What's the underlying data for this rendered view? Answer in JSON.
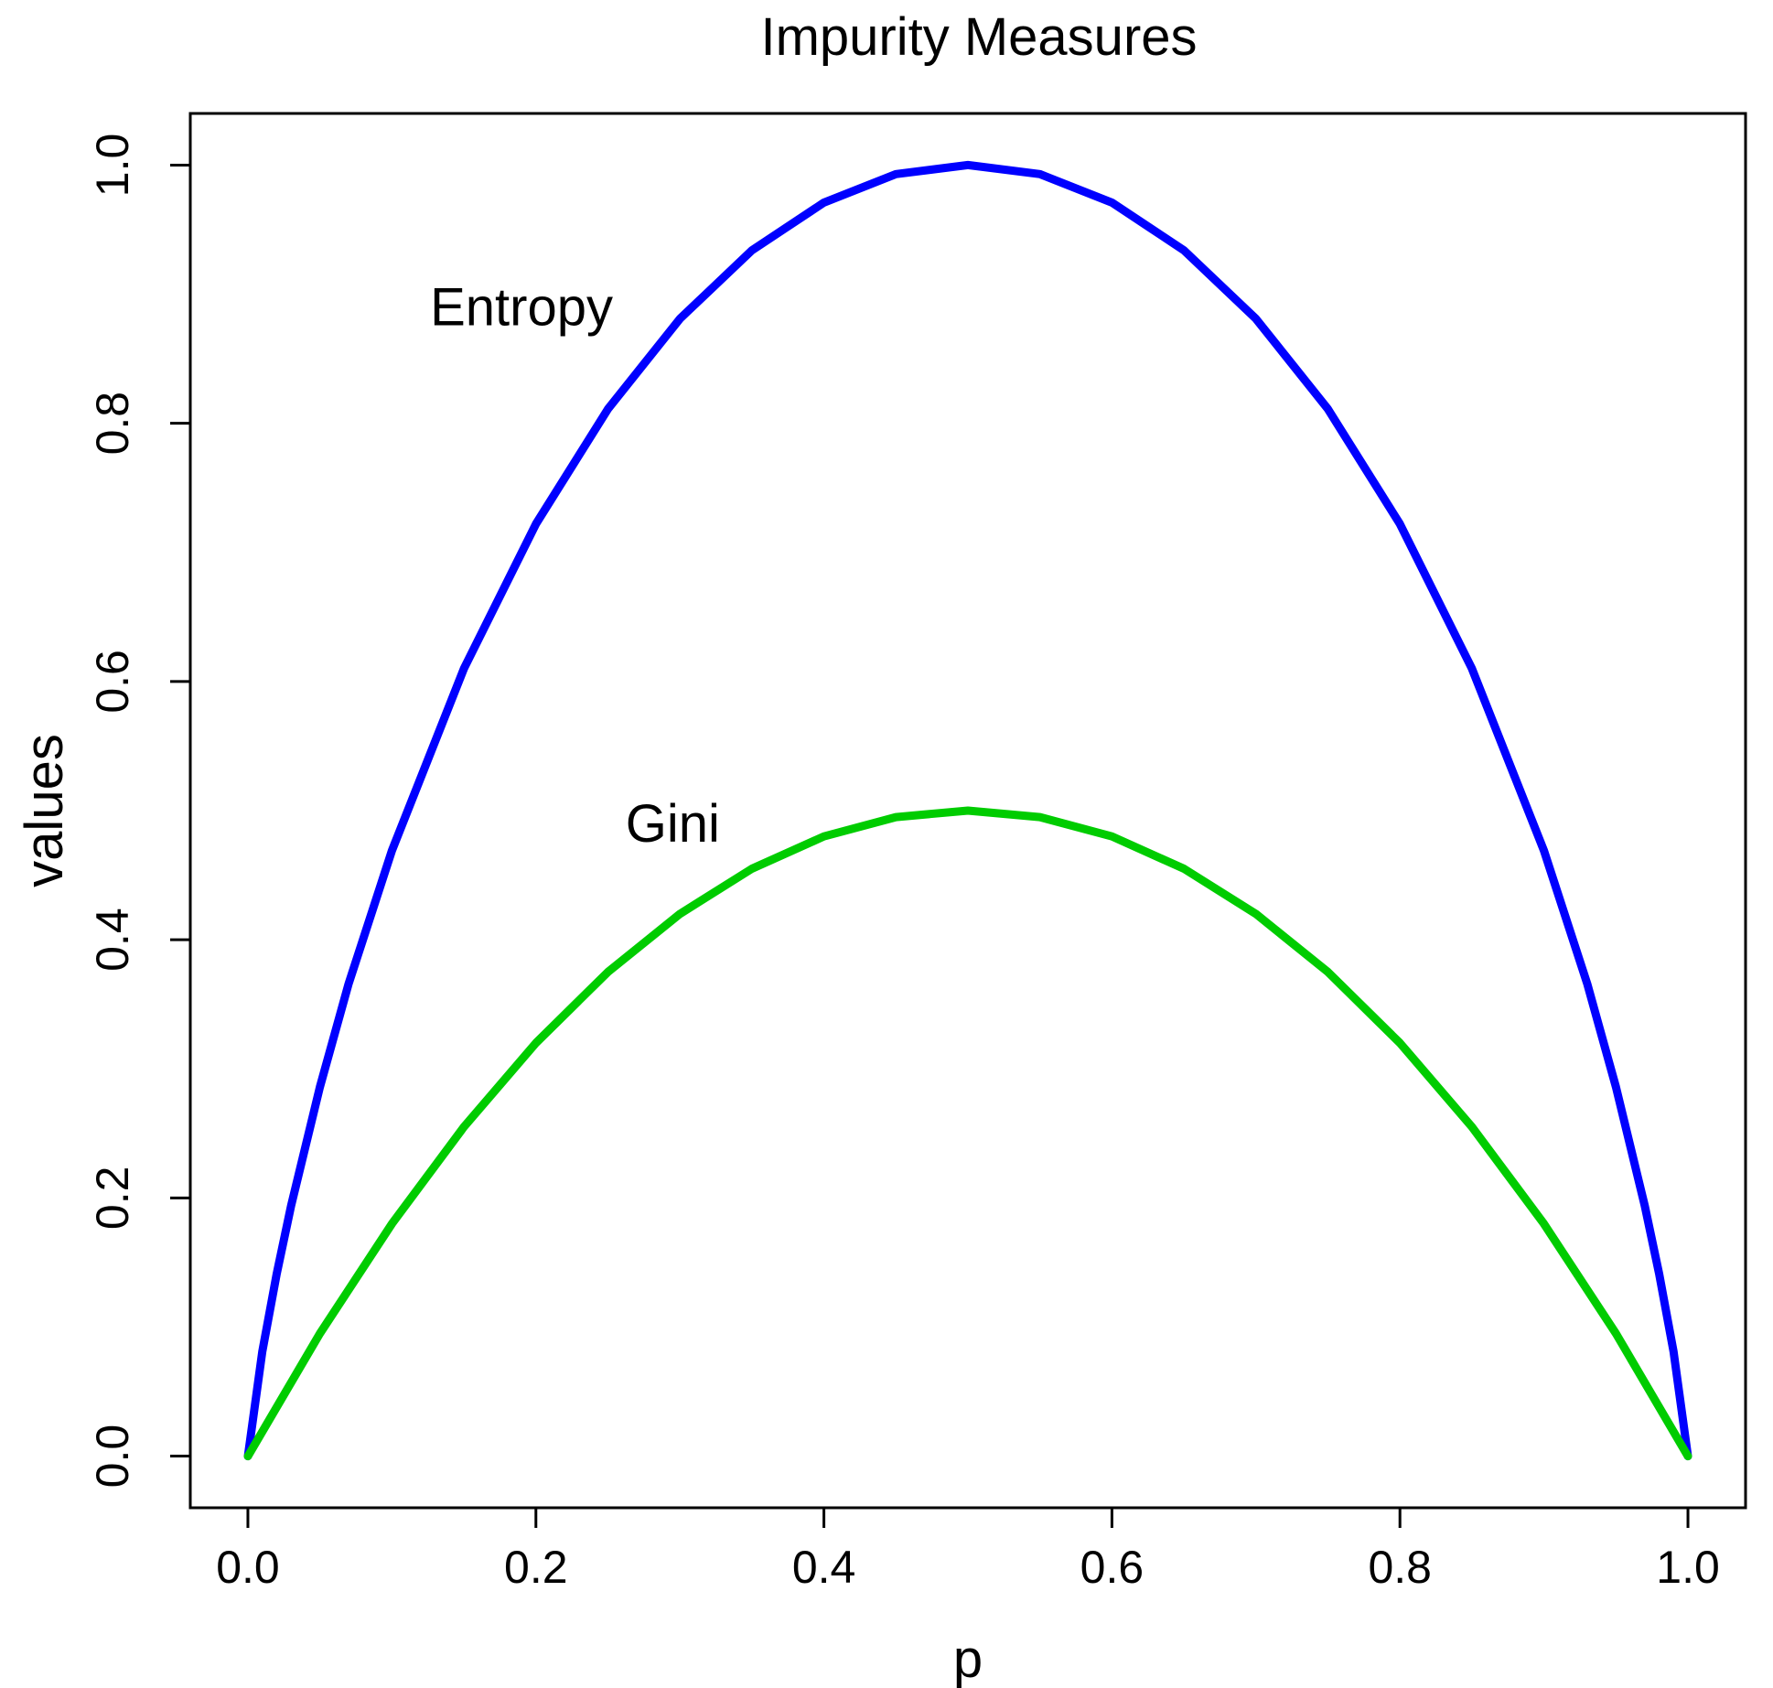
{
  "chart_data": {
    "type": "line",
    "title": "Impurity Measures",
    "xlabel": "p",
    "ylabel": "values",
    "xlim": [
      -0.04,
      1.04
    ],
    "ylim": [
      -0.04,
      1.04
    ],
    "x_ticks": [
      "0.0",
      "0.2",
      "0.4",
      "0.6",
      "0.8",
      "1.0"
    ],
    "y_ticks": [
      "0.0",
      "0.2",
      "0.4",
      "0.6",
      "0.8",
      "1.0"
    ],
    "grid": false,
    "legend": "none",
    "series": [
      {
        "color": "#0000ff",
        "x": [
          0.0,
          0.01,
          0.02,
          0.03,
          0.05,
          0.07,
          0.1,
          0.15,
          0.2,
          0.25,
          0.3,
          0.35,
          0.4,
          0.45,
          0.5,
          0.55,
          0.6,
          0.65,
          0.7,
          0.75,
          0.8,
          0.85,
          0.9,
          0.93,
          0.95,
          0.97,
          0.98,
          0.99,
          1.0
        ],
        "values": [
          0.0,
          0.081,
          0.141,
          0.194,
          0.286,
          0.366,
          0.469,
          0.61,
          0.722,
          0.811,
          0.881,
          0.934,
          0.971,
          0.993,
          1.0,
          0.993,
          0.971,
          0.934,
          0.881,
          0.811,
          0.722,
          0.61,
          0.469,
          0.366,
          0.286,
          0.194,
          0.141,
          0.081,
          0.0
        ]
      },
      {
        "color": "#00cc00",
        "x": [
          0.0,
          0.05,
          0.1,
          0.15,
          0.2,
          0.25,
          0.3,
          0.35,
          0.4,
          0.45,
          0.5,
          0.55,
          0.6,
          0.65,
          0.7,
          0.75,
          0.8,
          0.85,
          0.9,
          0.95,
          1.0
        ],
        "values": [
          0.0,
          0.095,
          0.18,
          0.255,
          0.32,
          0.375,
          0.42,
          0.455,
          0.48,
          0.495,
          0.5,
          0.495,
          0.48,
          0.455,
          0.42,
          0.375,
          0.32,
          0.255,
          0.18,
          0.095,
          0.0
        ]
      }
    ],
    "annotations": [
      {
        "text": "Entropy",
        "x": 0.19,
        "y": 0.89
      },
      {
        "text": "Gini",
        "x": 0.295,
        "y": 0.49
      }
    ]
  }
}
